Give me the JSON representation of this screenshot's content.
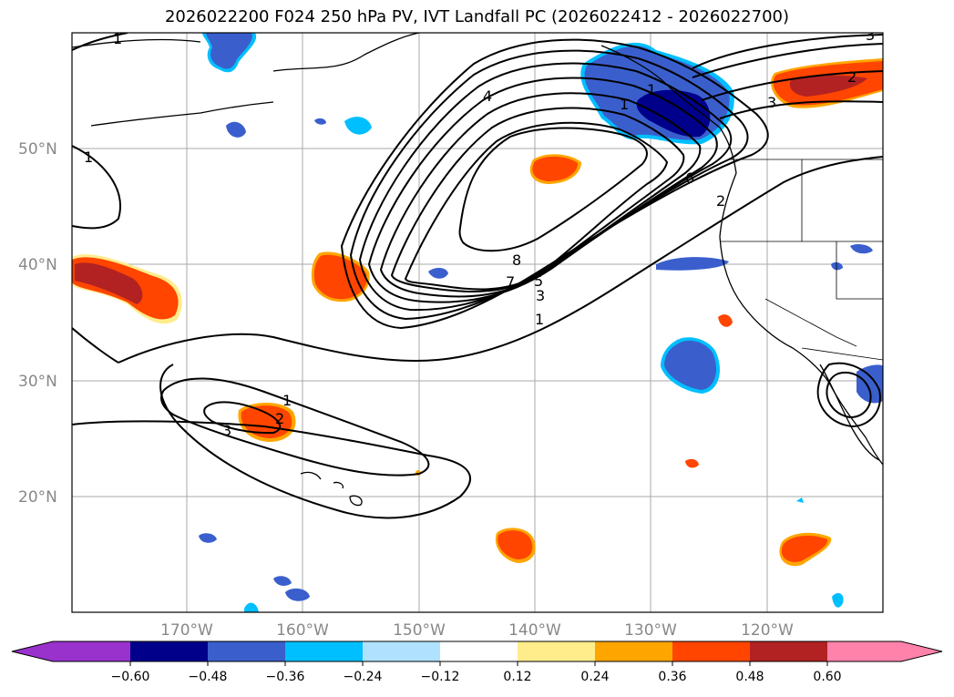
{
  "title": "2026022200 F024 250 hPa PV, IVT Landfall PC (2026022412 - 2026022700)",
  "lat_labels": [
    "50°N",
    "40°N",
    "30°N",
    "20°N"
  ],
  "lon_labels": [
    "170°W",
    "160°W",
    "150°W",
    "140°W",
    "130°W",
    "120°W"
  ],
  "contour_labels": [
    "1",
    "1",
    "1",
    "1",
    "1",
    "2",
    "2",
    "3",
    "3",
    "3",
    "4",
    "5",
    "6",
    "7",
    "8",
    "1",
    "2",
    "3"
  ],
  "colorbar": {
    "ticks": [
      "−0.60",
      "−0.48",
      "−0.36",
      "−0.24",
      "−0.12",
      "0.12",
      "0.24",
      "0.36",
      "0.48",
      "0.60"
    ],
    "colors": [
      "#9932cc",
      "#00008b",
      "#3a5fcd",
      "#00bfff",
      "#b0e2ff",
      "#ffffff",
      "#ffec8b",
      "#ffa500",
      "#ff4500",
      "#b22222",
      "#ff82ab"
    ]
  },
  "colors": {
    "neg_strong": "#00008b",
    "neg_mid": "#3a5fcd",
    "neg_light": "#00bfff",
    "neg_pale": "#b0e2ff",
    "pos_pale": "#ffec8b",
    "pos_mid": "#ffa500",
    "pos_strong": "#ff4500",
    "pos_dark": "#b22222"
  }
}
